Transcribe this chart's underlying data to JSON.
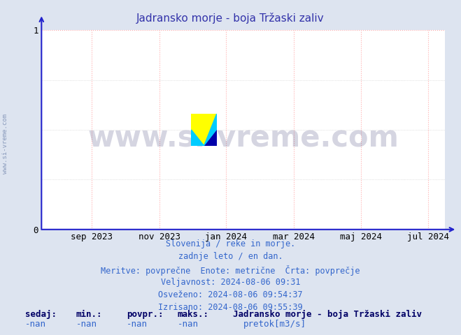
{
  "title": "Jadransko morje - boja Tržaski zaliv",
  "title_color": "#3333aa",
  "background_color": "#dde4f0",
  "plot_bg_color": "#ffffff",
  "ylim": [
    0,
    1
  ],
  "yticks": [
    0,
    1
  ],
  "xtick_labels": [
    "sep 2023",
    "nov 2023",
    "jan 2024",
    "mar 2024",
    "maj 2024",
    "jul 2024"
  ],
  "xtick_positions": [
    0.125,
    0.292,
    0.458,
    0.625,
    0.792,
    0.958
  ],
  "grid_color": "#ffaaaa",
  "axis_color": "#2222cc",
  "watermark_text": "www.si-vreme.com",
  "watermark_color": "#1a1a5e",
  "watermark_alpha": 0.18,
  "info_lines": [
    "Slovenija / reke in morje.",
    "zadnje leto / en dan.",
    "Meritve: povprečne  Enote: metrične  Črta: povprečje",
    "Veljavnost: 2024-08-06 09:31",
    "Osveženo: 2024-08-06 09:54:37",
    "Izrisano: 2024-08-06 09:55:39"
  ],
  "info_color": "#3366cc",
  "bottom_labels": [
    "sedaj:",
    "min.:",
    "povpr.:",
    "maks.:"
  ],
  "bottom_values": [
    "-nan",
    "-nan",
    "-nan",
    "-nan"
  ],
  "bottom_series_name": "Jadransko morje - boja Tržaski zaliv",
  "bottom_legend_color": "#00bb00",
  "bottom_legend_label": "pretok[m3/s]",
  "bottom_text_color": "#3366cc",
  "bottom_bold_color": "#000066",
  "side_watermark": "www.si-vreme.com",
  "side_watermark_color": "#8899bb"
}
